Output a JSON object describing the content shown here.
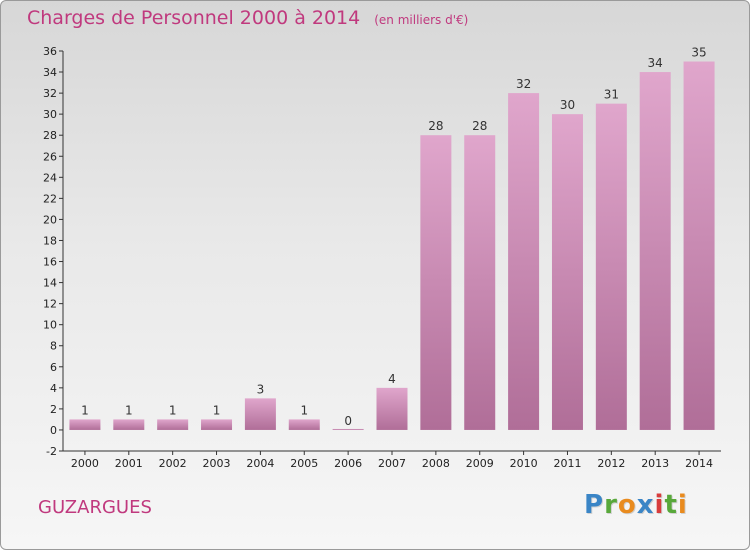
{
  "header": {
    "title": "Charges de Personnel 2000 à 2014",
    "unit": "(en milliers d'€)"
  },
  "footer": {
    "commune": "GUZARGUES",
    "logo_text": "Proxiti"
  },
  "colors": {
    "title": "#c0397e",
    "bar_top": "#e0a6cc",
    "bar_bottom": "#b06e98"
  },
  "chart_data": {
    "type": "bar",
    "title": "Charges de Personnel 2000 à 2014",
    "xlabel": "",
    "ylabel": "",
    "categories": [
      "2000",
      "2001",
      "2002",
      "2003",
      "2004",
      "2005",
      "2006",
      "2007",
      "2008",
      "2009",
      "2010",
      "2011",
      "2012",
      "2013",
      "2014"
    ],
    "values": [
      1,
      1,
      1,
      1,
      3,
      1,
      0,
      4,
      28,
      28,
      32,
      30,
      31,
      34,
      35
    ],
    "ylim": [
      -2,
      36
    ],
    "yticks": [
      -2,
      0,
      2,
      4,
      6,
      8,
      10,
      12,
      14,
      16,
      18,
      20,
      22,
      24,
      26,
      28,
      30,
      32,
      34,
      36
    ],
    "grid": false,
    "legend": "none"
  }
}
